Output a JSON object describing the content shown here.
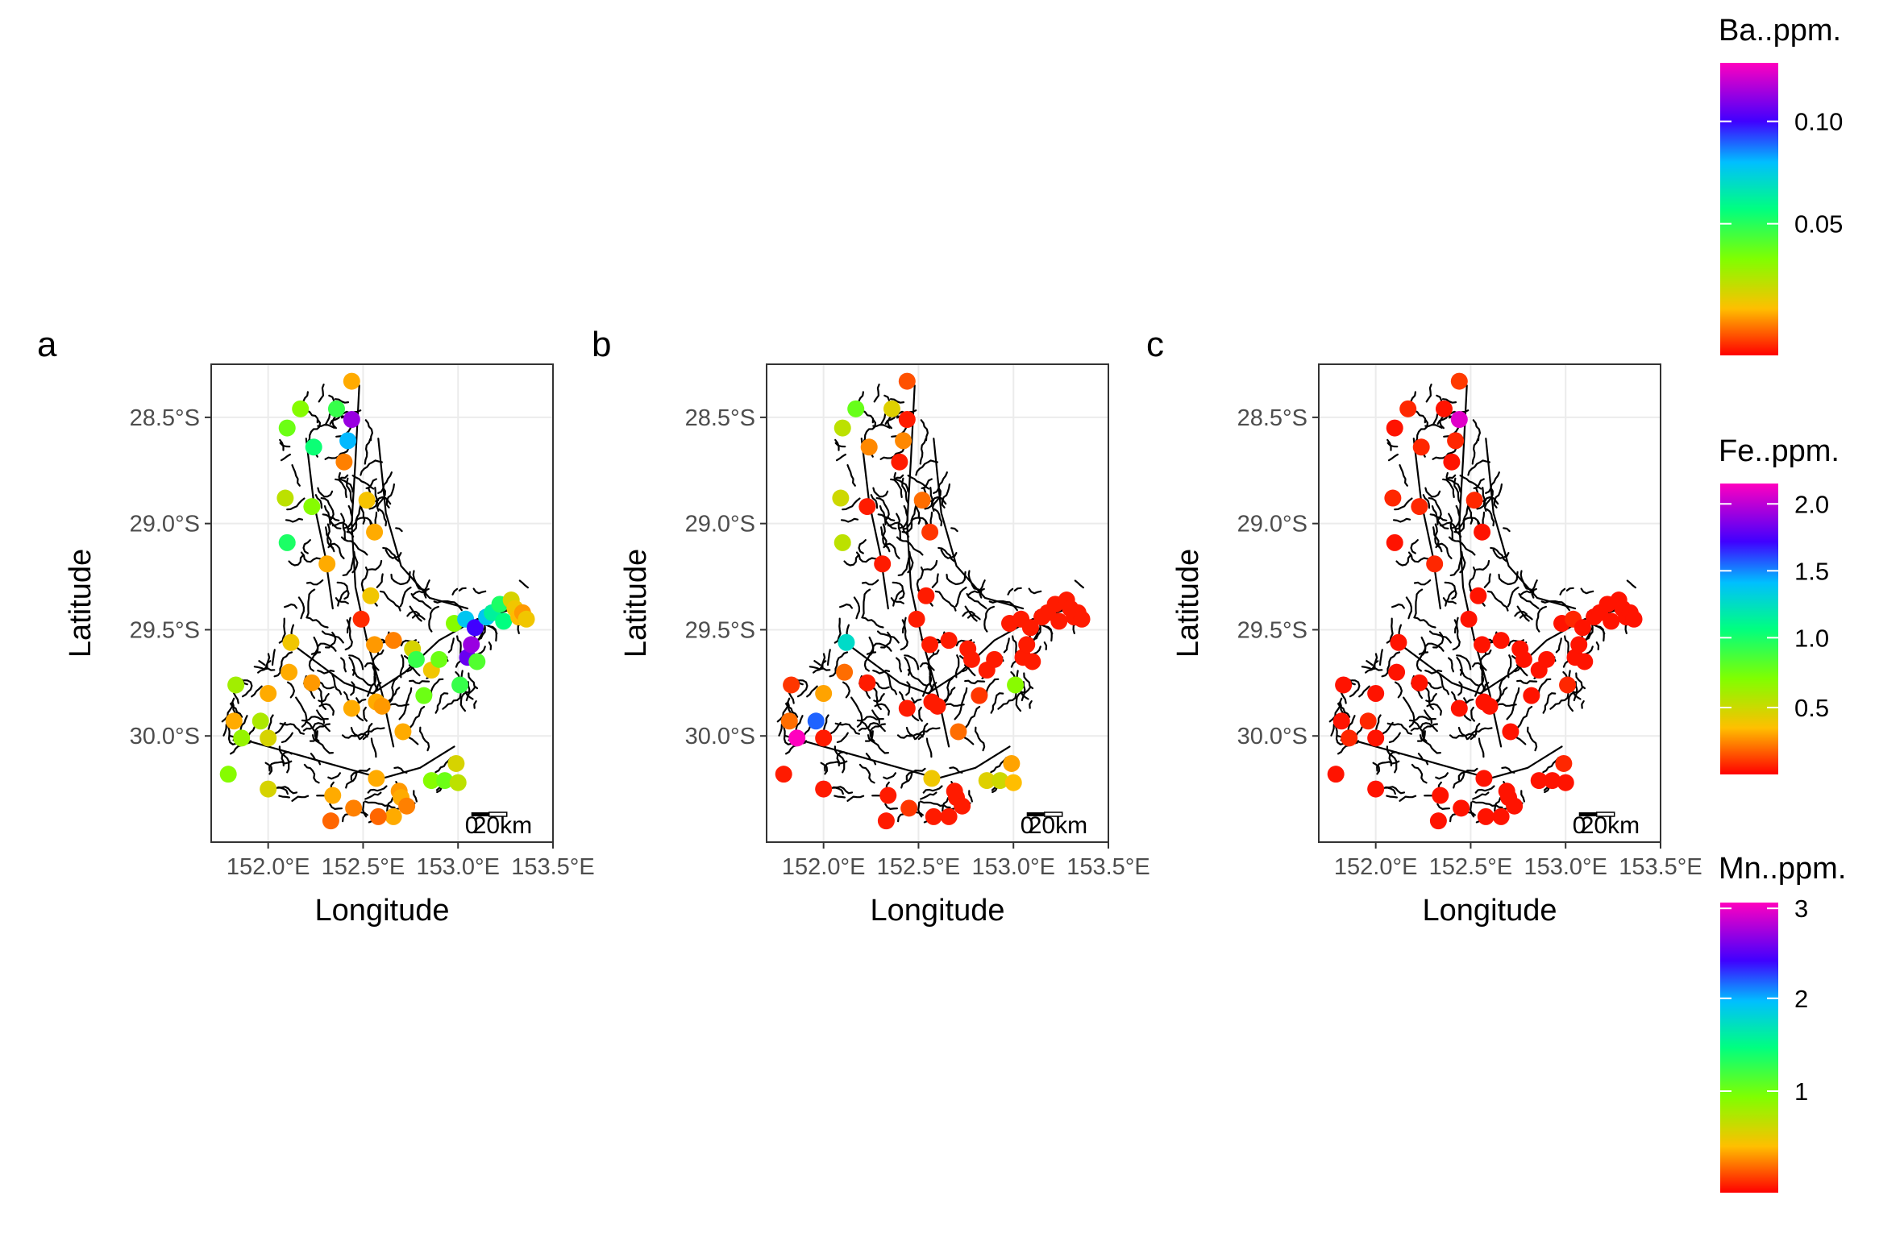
{
  "chart_data": {
    "type": "scatter",
    "xlabel": "Longitude",
    "ylabel": "Latitude",
    "xlim": [
      151.7,
      153.5
    ],
    "ylim": [
      -30.5,
      -28.25
    ],
    "x_ticks": [
      152.0,
      152.5,
      153.0,
      153.5
    ],
    "x_tick_labels": [
      "152.0°E",
      "152.5°E",
      "153.0°E",
      "153.5°E"
    ],
    "y_ticks": [
      -28.5,
      -29.0,
      -29.5,
      -30.0
    ],
    "y_tick_labels": [
      "28.5°S",
      "29.0°S",
      "29.5°S",
      "30.0°S"
    ],
    "grid": true,
    "legend_placement": "right",
    "scalebar_label_left": "0",
    "scalebar_label_right": "20km",
    "stations": [
      [
        152.44,
        -28.33
      ],
      [
        152.17,
        -28.46
      ],
      [
        152.36,
        -28.46
      ],
      [
        152.1,
        -28.55
      ],
      [
        152.44,
        -28.51
      ],
      [
        152.24,
        -28.64
      ],
      [
        152.42,
        -28.61
      ],
      [
        152.4,
        -28.71
      ],
      [
        152.09,
        -28.88
      ],
      [
        152.23,
        -28.92
      ],
      [
        152.52,
        -28.89
      ],
      [
        152.56,
        -29.04
      ],
      [
        152.1,
        -29.09
      ],
      [
        152.31,
        -29.19
      ],
      [
        152.54,
        -29.34
      ],
      [
        152.49,
        -29.45
      ],
      [
        152.12,
        -29.56
      ],
      [
        152.56,
        -29.57
      ],
      [
        152.66,
        -29.55
      ],
      [
        152.76,
        -29.59
      ],
      [
        152.78,
        -29.64
      ],
      [
        152.86,
        -29.69
      ],
      [
        152.9,
        -29.64
      ],
      [
        152.98,
        -29.47
      ],
      [
        153.04,
        -29.45
      ],
      [
        153.09,
        -29.49
      ],
      [
        153.05,
        -29.63
      ],
      [
        153.1,
        -29.65
      ],
      [
        153.07,
        -29.57
      ],
      [
        153.15,
        -29.44
      ],
      [
        153.18,
        -29.42
      ],
      [
        153.22,
        -29.38
      ],
      [
        153.24,
        -29.46
      ],
      [
        153.28,
        -29.36
      ],
      [
        153.3,
        -29.4
      ],
      [
        153.32,
        -29.44
      ],
      [
        153.34,
        -29.42
      ],
      [
        153.36,
        -29.45
      ],
      [
        152.11,
        -29.7
      ],
      [
        152.23,
        -29.75
      ],
      [
        151.83,
        -29.76
      ],
      [
        152.0,
        -29.8
      ],
      [
        151.82,
        -29.93
      ],
      [
        151.96,
        -29.93
      ],
      [
        152.44,
        -29.87
      ],
      [
        152.57,
        -29.84
      ],
      [
        152.6,
        -29.86
      ],
      [
        152.82,
        -29.81
      ],
      [
        153.01,
        -29.76
      ],
      [
        152.71,
        -29.98
      ],
      [
        152.0,
        -30.01
      ],
      [
        151.86,
        -30.01
      ],
      [
        151.79,
        -30.18
      ],
      [
        152.0,
        -30.25
      ],
      [
        152.34,
        -30.28
      ],
      [
        152.45,
        -30.34
      ],
      [
        152.33,
        -30.4
      ],
      [
        152.57,
        -30.2
      ],
      [
        152.69,
        -30.26
      ],
      [
        152.7,
        -30.29
      ],
      [
        152.73,
        -30.33
      ],
      [
        152.66,
        -30.38
      ],
      [
        152.58,
        -30.38
      ],
      [
        152.86,
        -30.21
      ],
      [
        152.93,
        -30.21
      ],
      [
        152.99,
        -30.13
      ],
      [
        153.0,
        -30.22
      ]
    ],
    "panels": [
      {
        "label": "a",
        "legend_title": "Ba..ppm.",
        "legend_tick_labels": [
          "0.10",
          "0.05"
        ],
        "color_range": [
          0,
          0.14
        ],
        "values": [
          0.02,
          0.045,
          0.06,
          0.05,
          0.125,
          0.068,
          0.093,
          0.015,
          0.035,
          0.045,
          0.024,
          0.02,
          0.065,
          0.02,
          0.025,
          0.005,
          0.025,
          0.018,
          0.015,
          0.03,
          0.06,
          0.025,
          0.05,
          0.045,
          0.09,
          0.112,
          0.118,
          0.055,
          0.125,
          0.09,
          0.075,
          0.065,
          0.07,
          0.03,
          0.025,
          0.022,
          0.018,
          0.025,
          0.02,
          0.018,
          0.04,
          0.02,
          0.02,
          0.038,
          0.02,
          0.02,
          0.018,
          0.05,
          0.06,
          0.02,
          0.03,
          0.042,
          0.045,
          0.03,
          0.02,
          0.015,
          0.012,
          0.02,
          0.018,
          0.02,
          0.015,
          0.02,
          0.012,
          0.045,
          0.05,
          0.03,
          0.035
        ]
      },
      {
        "label": "b",
        "legend_title": "Fe..ppm.",
        "legend_tick_labels": [
          "2.0",
          "1.5",
          "1.0",
          "0.5"
        ],
        "color_range": [
          0,
          2.2
        ],
        "values": [
          0.15,
          0.8,
          0.45,
          0.55,
          0.05,
          0.25,
          0.25,
          0.05,
          0.5,
          0.05,
          0.2,
          0.1,
          0.55,
          0.05,
          0.05,
          0.05,
          1.3,
          0.05,
          0.05,
          0.05,
          0.05,
          0.05,
          0.05,
          0.05,
          0.05,
          0.05,
          0.05,
          0.05,
          0.05,
          0.05,
          0.05,
          0.05,
          0.05,
          0.05,
          0.05,
          0.05,
          0.05,
          0.05,
          0.2,
          0.05,
          0.1,
          0.3,
          0.2,
          1.6,
          0.05,
          0.05,
          0.05,
          0.1,
          0.7,
          0.2,
          0.05,
          2.2,
          0.05,
          0.05,
          0.05,
          0.1,
          0.05,
          0.4,
          0.05,
          0.05,
          0.05,
          0.05,
          0.05,
          0.45,
          0.5,
          0.3,
          0.35
        ]
      },
      {
        "label": "c",
        "legend_title": "Mn..ppm.",
        "legend_tick_labels": [
          "3",
          "2",
          "1"
        ],
        "color_range": [
          0,
          3.1
        ],
        "values": [
          0.15,
          0.1,
          0.05,
          0.05,
          3.0,
          0.1,
          0.1,
          0.05,
          0.1,
          0.1,
          0.1,
          0.05,
          0.05,
          0.1,
          0.05,
          0.05,
          0.05,
          0.05,
          0.05,
          0.05,
          0.05,
          0.05,
          0.05,
          0.05,
          0.1,
          0.05,
          0.05,
          0.05,
          0.05,
          0.05,
          0.05,
          0.05,
          0.05,
          0.05,
          0.05,
          0.05,
          0.05,
          0.05,
          0.05,
          0.05,
          0.05,
          0.05,
          0.05,
          0.1,
          0.05,
          0.05,
          0.05,
          0.05,
          0.1,
          0.05,
          0.05,
          0.1,
          0.05,
          0.05,
          0.05,
          0.05,
          0.05,
          0.05,
          0.05,
          0.05,
          0.05,
          0.05,
          0.05,
          0.05,
          0.05,
          0.1,
          0.05
        ]
      }
    ]
  }
}
